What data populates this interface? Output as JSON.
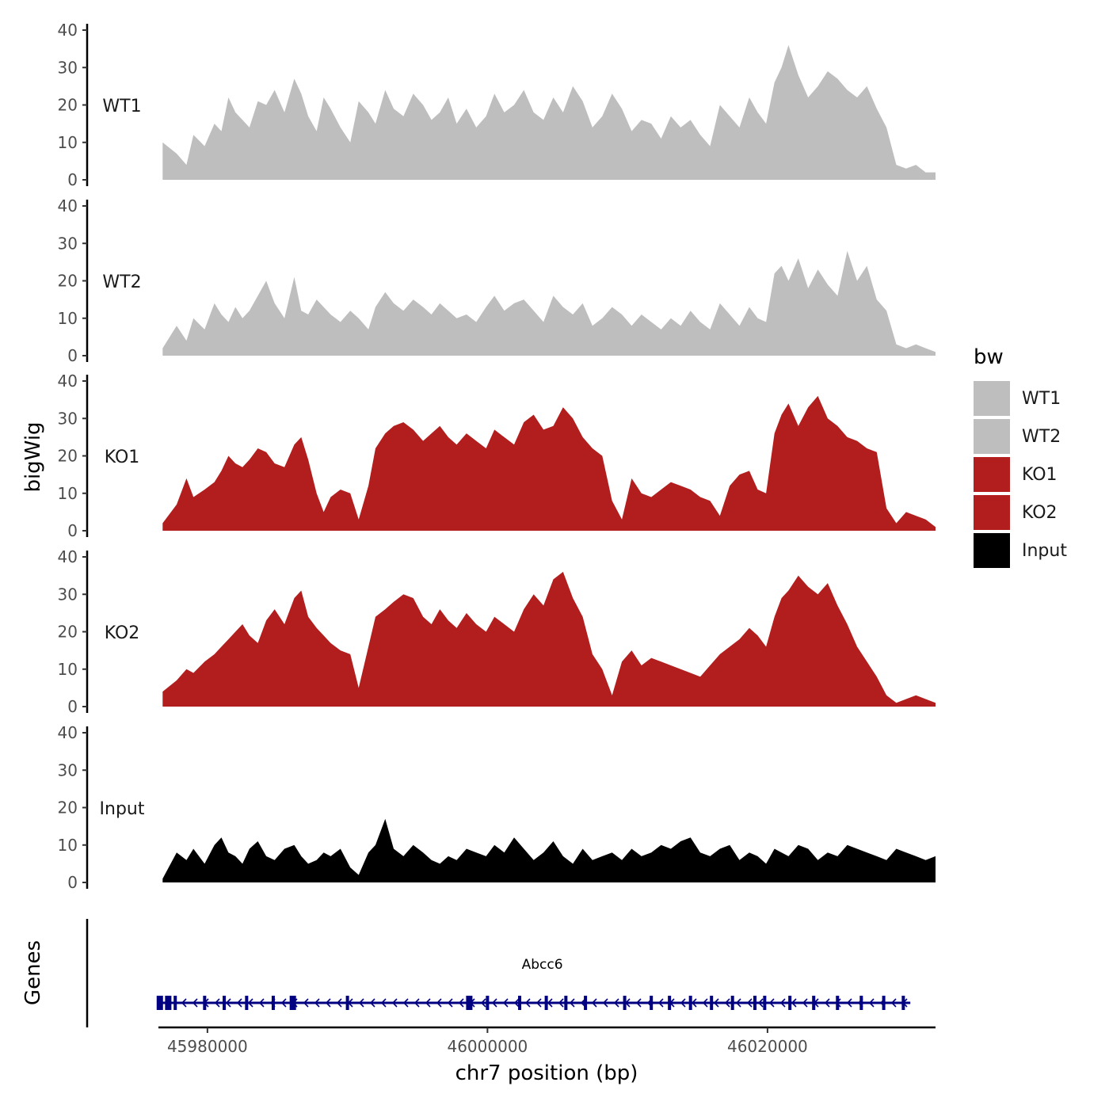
{
  "chart_data": {
    "type": "area",
    "y_axis_title": "bigWig",
    "x_axis_title": "chr7 position (bp)",
    "genes_panel_title": "Genes",
    "xlim": [
      45976500,
      46032000
    ],
    "ylim": [
      0,
      40
    ],
    "y_ticks": [
      0,
      10,
      20,
      30,
      40
    ],
    "x_ticks": [
      45980000,
      46000000,
      46020000
    ],
    "legend": {
      "title": "bw",
      "entries": [
        {
          "label": "WT1",
          "color": "#bebebe"
        },
        {
          "label": "WT2",
          "color": "#bebebe"
        },
        {
          "label": "KO1",
          "color": "#b21e1e"
        },
        {
          "label": "KO2",
          "color": "#b21e1e"
        },
        {
          "label": "Input",
          "color": "#000000"
        }
      ]
    },
    "tracks": [
      {
        "name": "WT1",
        "color": "#bebebe",
        "x": [
          45976800,
          45977800,
          45978500,
          45979000,
          45979800,
          45980500,
          45981000,
          45981500,
          45982000,
          45982500,
          45983000,
          45983600,
          45984200,
          45984800,
          45985500,
          45986200,
          45986700,
          45987200,
          45987800,
          45988300,
          45988800,
          45989500,
          45990200,
          45990800,
          45991500,
          45992000,
          45992700,
          45993300,
          45994000,
          45994700,
          45995400,
          45996000,
          45996600,
          45997200,
          45997800,
          45998500,
          45999200,
          45999900,
          46000500,
          46001200,
          46001900,
          46002600,
          46003300,
          46004000,
          46004700,
          46005400,
          46006100,
          46006800,
          46007500,
          46008200,
          46008900,
          46009600,
          46010300,
          46011000,
          46011700,
          46012400,
          46013100,
          46013800,
          46014500,
          46015200,
          46015900,
          46016600,
          46017300,
          46018000,
          46018700,
          46019300,
          46019900,
          46020500,
          46021000,
          46021500,
          46022200,
          46022900,
          46023600,
          46024300,
          46025000,
          46025700,
          46026400,
          46027100,
          46027800,
          46028500,
          46029200,
          46029900,
          46030600,
          46031300,
          46032000
        ],
        "values": [
          10,
          7,
          4,
          12,
          9,
          15,
          13,
          22,
          18,
          16,
          14,
          21,
          20,
          24,
          18,
          27,
          23,
          17,
          13,
          22,
          19,
          14,
          10,
          21,
          18,
          15,
          24,
          19,
          17,
          23,
          20,
          16,
          18,
          22,
          15,
          19,
          14,
          17,
          23,
          18,
          20,
          24,
          18,
          16,
          22,
          18,
          25,
          21,
          14,
          17,
          23,
          19,
          13,
          16,
          15,
          11,
          17,
          14,
          16,
          12,
          9,
          20,
          17,
          14,
          22,
          18,
          15,
          26,
          30,
          36,
          28,
          22,
          25,
          29,
          27,
          24,
          22,
          25,
          19,
          14,
          4,
          3,
          4,
          2,
          2
        ]
      },
      {
        "name": "WT2",
        "color": "#bebebe",
        "x": [
          45976800,
          45977800,
          45978500,
          45979000,
          45979800,
          45980500,
          45981000,
          45981500,
          45982000,
          45982500,
          45983000,
          45983600,
          45984200,
          45984800,
          45985500,
          45986200,
          45986700,
          45987200,
          45987800,
          45988300,
          45988800,
          45989500,
          45990200,
          45990800,
          45991500,
          45992000,
          45992700,
          45993300,
          45994000,
          45994700,
          45995400,
          45996000,
          45996600,
          45997200,
          45997800,
          45998500,
          45999200,
          45999900,
          46000500,
          46001200,
          46001900,
          46002600,
          46003300,
          46004000,
          46004700,
          46005400,
          46006100,
          46006800,
          46007500,
          46008200,
          46008900,
          46009600,
          46010300,
          46011000,
          46011700,
          46012400,
          46013100,
          46013800,
          46014500,
          46015200,
          46015900,
          46016600,
          46017300,
          46018000,
          46018700,
          46019300,
          46019900,
          46020500,
          46021000,
          46021500,
          46022200,
          46022900,
          46023600,
          46024300,
          46025000,
          46025700,
          46026400,
          46027100,
          46027800,
          46028500,
          46029200,
          46029900,
          46030600,
          46031300,
          46032000
        ],
        "values": [
          2,
          8,
          4,
          10,
          7,
          14,
          11,
          9,
          13,
          10,
          12,
          16,
          20,
          14,
          10,
          21,
          12,
          11,
          15,
          13,
          11,
          9,
          12,
          10,
          7,
          13,
          17,
          14,
          12,
          15,
          13,
          11,
          14,
          12,
          10,
          11,
          9,
          13,
          16,
          12,
          14,
          15,
          12,
          9,
          16,
          13,
          11,
          14,
          8,
          10,
          13,
          11,
          8,
          11,
          9,
          7,
          10,
          8,
          12,
          9,
          7,
          14,
          11,
          8,
          13,
          10,
          9,
          22,
          24,
          20,
          26,
          18,
          23,
          19,
          16,
          28,
          20,
          24,
          15,
          12,
          3,
          2,
          3,
          2,
          1
        ]
      },
      {
        "name": "KO1",
        "color": "#b21e1e",
        "x": [
          45976800,
          45977800,
          45978500,
          45979000,
          45979800,
          45980500,
          45981000,
          45981500,
          45982000,
          45982500,
          45983000,
          45983600,
          45984200,
          45984800,
          45985500,
          45986200,
          45986700,
          45987200,
          45987800,
          45988300,
          45988800,
          45989500,
          45990200,
          45990800,
          45991500,
          45992000,
          45992700,
          45993300,
          45994000,
          45994700,
          45995400,
          45996000,
          45996600,
          45997200,
          45997800,
          45998500,
          45999200,
          45999900,
          46000500,
          46001200,
          46001900,
          46002600,
          46003300,
          46004000,
          46004700,
          46005400,
          46006100,
          46006800,
          46007500,
          46008200,
          46008900,
          46009600,
          46010300,
          46011000,
          46011700,
          46012400,
          46013100,
          46013800,
          46014500,
          46015200,
          46015900,
          46016600,
          46017300,
          46018000,
          46018700,
          46019300,
          46019900,
          46020500,
          46021000,
          46021500,
          46022200,
          46022900,
          46023600,
          46024300,
          46025000,
          46025700,
          46026400,
          46027100,
          46027800,
          46028500,
          46029200,
          46029900,
          46030600,
          46031300,
          46032000
        ],
        "values": [
          2,
          7,
          14,
          9,
          11,
          13,
          16,
          20,
          18,
          17,
          19,
          22,
          21,
          18,
          17,
          23,
          25,
          19,
          10,
          5,
          9,
          11,
          10,
          3,
          12,
          22,
          26,
          28,
          29,
          27,
          24,
          26,
          28,
          25,
          23,
          26,
          24,
          22,
          27,
          25,
          23,
          29,
          31,
          27,
          28,
          33,
          30,
          25,
          22,
          20,
          8,
          3,
          14,
          10,
          9,
          11,
          13,
          12,
          11,
          9,
          8,
          4,
          12,
          15,
          16,
          11,
          10,
          26,
          31,
          34,
          28,
          33,
          36,
          30,
          28,
          25,
          24,
          22,
          21,
          6,
          2,
          5,
          4,
          3,
          1
        ]
      },
      {
        "name": "KO2",
        "color": "#b21e1e",
        "x": [
          45976800,
          45977800,
          45978500,
          45979000,
          45979800,
          45980500,
          45981000,
          45981500,
          45982000,
          45982500,
          45983000,
          45983600,
          45984200,
          45984800,
          45985500,
          45986200,
          45986700,
          45987200,
          45987800,
          45988300,
          45988800,
          45989500,
          45990200,
          45990800,
          45991500,
          45992000,
          45992700,
          45993300,
          45994000,
          45994700,
          45995400,
          45996000,
          45996600,
          45997200,
          45997800,
          45998500,
          45999200,
          45999900,
          46000500,
          46001200,
          46001900,
          46002600,
          46003300,
          46004000,
          46004700,
          46005400,
          46006100,
          46006800,
          46007500,
          46008200,
          46008900,
          46009600,
          46010300,
          46011000,
          46011700,
          46012400,
          46013100,
          46013800,
          46014500,
          46015200,
          46015900,
          46016600,
          46017300,
          46018000,
          46018700,
          46019300,
          46019900,
          46020500,
          46021000,
          46021500,
          46022200,
          46022900,
          46023600,
          46024300,
          46025000,
          46025700,
          46026400,
          46027100,
          46027800,
          46028500,
          46029200,
          46029900,
          46030600,
          46031300,
          46032000
        ],
        "values": [
          4,
          7,
          10,
          9,
          12,
          14,
          16,
          18,
          20,
          22,
          19,
          17,
          23,
          26,
          22,
          29,
          31,
          24,
          21,
          19,
          17,
          15,
          14,
          5,
          16,
          24,
          26,
          28,
          30,
          29,
          24,
          22,
          26,
          23,
          21,
          25,
          22,
          20,
          24,
          22,
          20,
          26,
          30,
          27,
          34,
          36,
          29,
          24,
          14,
          10,
          3,
          12,
          15,
          11,
          13,
          12,
          11,
          10,
          9,
          8,
          11,
          14,
          16,
          18,
          21,
          19,
          16,
          24,
          29,
          31,
          35,
          32,
          30,
          33,
          27,
          22,
          16,
          12,
          8,
          3,
          1,
          2,
          3,
          2,
          1
        ]
      },
      {
        "name": "Input",
        "color": "#000000",
        "x": [
          45976800,
          45977800,
          45978500,
          45979000,
          45979800,
          45980500,
          45981000,
          45981500,
          45982000,
          45982500,
          45983000,
          45983600,
          45984200,
          45984800,
          45985500,
          45986200,
          45986700,
          45987200,
          45987800,
          45988300,
          45988800,
          45989500,
          45990200,
          45990800,
          45991500,
          45992000,
          45992700,
          45993300,
          45994000,
          45994700,
          45995400,
          45996000,
          45996600,
          45997200,
          45997800,
          45998500,
          45999200,
          45999900,
          46000500,
          46001200,
          46001900,
          46002600,
          46003300,
          46004000,
          46004700,
          46005400,
          46006100,
          46006800,
          46007500,
          46008200,
          46008900,
          46009600,
          46010300,
          46011000,
          46011700,
          46012400,
          46013100,
          46013800,
          46014500,
          46015200,
          46015900,
          46016600,
          46017300,
          46018000,
          46018700,
          46019300,
          46019900,
          46020500,
          46021000,
          46021500,
          46022200,
          46022900,
          46023600,
          46024300,
          46025000,
          46025700,
          46026400,
          46027100,
          46027800,
          46028500,
          46029200,
          46029900,
          46030600,
          46031300,
          46032000
        ],
        "values": [
          1,
          8,
          6,
          9,
          5,
          10,
          12,
          8,
          7,
          5,
          9,
          11,
          7,
          6,
          9,
          10,
          7,
          5,
          6,
          8,
          7,
          9,
          4,
          2,
          8,
          10,
          17,
          9,
          7,
          10,
          8,
          6,
          5,
          7,
          6,
          9,
          8,
          7,
          10,
          8,
          12,
          9,
          6,
          8,
          11,
          7,
          5,
          9,
          6,
          7,
          8,
          6,
          9,
          7,
          8,
          10,
          9,
          11,
          12,
          8,
          7,
          9,
          10,
          6,
          8,
          7,
          5,
          9,
          8,
          7,
          10,
          9,
          6,
          8,
          7,
          10,
          9,
          8,
          7,
          6,
          9,
          8,
          7,
          6,
          7
        ]
      },
      {
        "name": "Genes",
        "color": "#000080",
        "gene": {
          "label": "Abcc6",
          "start": 45976500,
          "end": 46030200,
          "strand": "-",
          "exons": [
            45976600,
            45977200,
            45977700,
            45979800,
            45981200,
            45982800,
            45984700,
            45986100,
            45990000,
            45998700,
            46000000,
            46002300,
            46004200,
            46005600,
            46007000,
            46009800,
            46011700,
            46013000,
            46014500,
            46016000,
            46017500,
            46019100,
            46019800,
            46021600,
            46023300,
            46025000,
            46026700,
            46028300,
            46029700
          ]
        }
      }
    ]
  }
}
